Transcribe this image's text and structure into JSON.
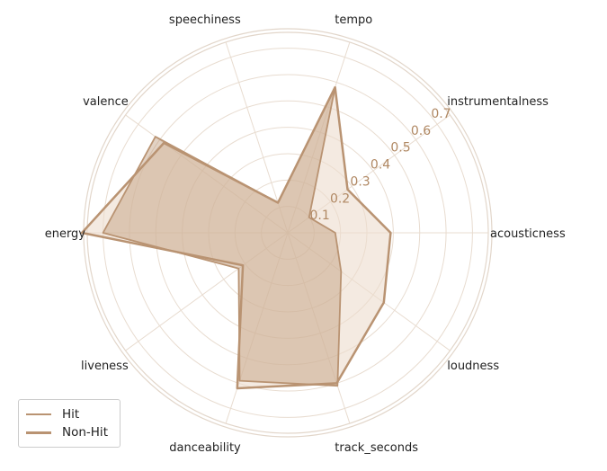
{
  "chart_data": {
    "type": "radar",
    "categories": [
      "acousticness",
      "instrumentalness",
      "tempo",
      "speechiness",
      "valence",
      "energy",
      "liveness",
      "danceability",
      "track_seconds",
      "loudness"
    ],
    "radial_ticks": [
      "0.1",
      "0.2",
      "0.3",
      "0.4",
      "0.5",
      "0.6",
      "0.7"
    ],
    "rlim": [
      0,
      0.76
    ],
    "grid": true,
    "legend_position": "lower-left",
    "series": [
      {
        "name": "Hit",
        "values": [
          0.18,
          0.1,
          0.58,
          0.12,
          0.62,
          0.7,
          0.23,
          0.59,
          0.61,
          0.25
        ],
        "color": "#b99372",
        "fill": "#b99372",
        "fill_opacity": 0.42
      },
      {
        "name": "Non-Hit",
        "values": [
          0.39,
          0.28,
          0.58,
          0.12,
          0.58,
          0.78,
          0.21,
          0.62,
          0.6,
          0.45
        ],
        "color": "#b99372",
        "fill": "#ecdccd",
        "fill_opacity": 0.6
      }
    ]
  }
}
